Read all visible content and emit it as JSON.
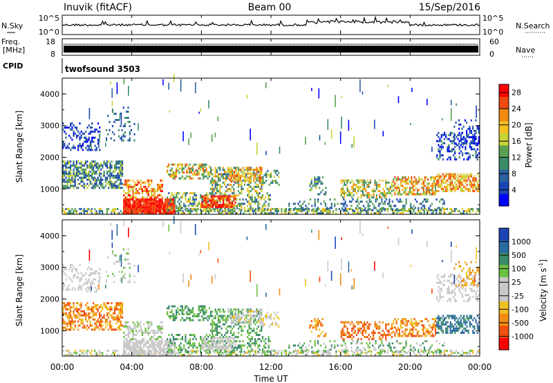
{
  "header": {
    "station": "Inuvik (fitACF)",
    "beam": "Beam 00",
    "date": "15/Sep/2016"
  },
  "side_labels": {
    "nsky": "N.Sky",
    "freq_line1": "Freq.",
    "freq_line2": "[MHz]",
    "cpid": "CPID",
    "nsearch": "N.Search",
    "nave": "Nave"
  },
  "top_panels": {
    "nsky_ticks": [
      "10^5",
      "10^0"
    ],
    "nsearch_ticks": [
      "10^5",
      "10^0"
    ],
    "freq_ticks": [
      "18",
      "8"
    ],
    "nave_ticks": [
      "60",
      "0"
    ],
    "cpid_text": "twofsound 3503"
  },
  "colors": {
    "power_scale": [
      "#0000ff",
      "#1a44b4",
      "#2a60a0",
      "#3a8a6a",
      "#5aa050",
      "#c8d238",
      "#f0c020",
      "#f08a10",
      "#f04a10",
      "#ff0000"
    ],
    "velocity_scale": [
      "#ff0000",
      "#f05010",
      "#f08a10",
      "#f0c020",
      "#c8c8c8",
      "#c8c8c8",
      "#6ac040",
      "#3a8a6a",
      "#2a6aa0",
      "#1a44b4"
    ]
  },
  "chart_data": [
    {
      "type": "heatmap",
      "name": "power",
      "ylabel": "Slant Range [km]",
      "y_ticks": [
        "1000",
        "2000",
        "3000",
        "4000"
      ],
      "ylim": [
        200,
        4500
      ],
      "colorbar_label": "Power [dB]",
      "colorbar_ticks": [
        "4",
        "8",
        "12",
        "16",
        "20",
        "24",
        "28"
      ],
      "colorbar_range": [
        0,
        30
      ]
    },
    {
      "type": "heatmap",
      "name": "velocity",
      "ylabel": "Slant Range [km]",
      "y_ticks": [
        "1000",
        "2000",
        "3000",
        "4000"
      ],
      "ylim": [
        200,
        4500
      ],
      "colorbar_label": "Velocity [m s",
      "colorbar_label_sup": "-1",
      "colorbar_label_end": "]",
      "colorbar_ticks": [
        "1000",
        "500",
        "100",
        "25",
        "-25",
        "-100",
        "-500",
        "-1000"
      ]
    }
  ],
  "time_axis": {
    "ticks": [
      "00:00",
      "04:00",
      "08:00",
      "12:00",
      "16:00",
      "20:00",
      "00:00"
    ],
    "xlabel": "Time UT",
    "xlim_hours": [
      0,
      24
    ]
  }
}
